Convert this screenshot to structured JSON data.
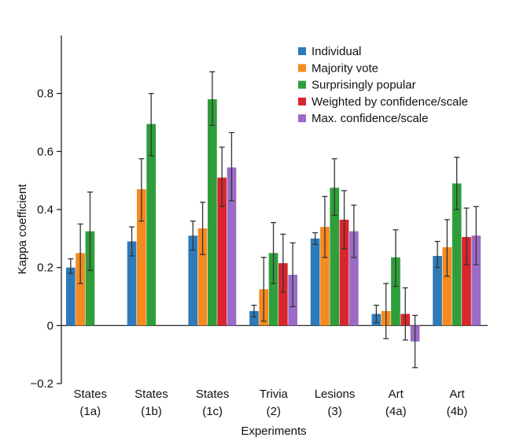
{
  "chart_data": {
    "type": "bar",
    "title": "",
    "xlabel": "Experiments",
    "ylabel": "Kappa coefficient",
    "ylim": [
      -0.2,
      1.0
    ],
    "yticks": [
      -0.2,
      0,
      0.2,
      0.4,
      0.6,
      0.8
    ],
    "ytick_labels": [
      "−0.2",
      "0",
      "0.2",
      "0.4",
      "0.6",
      "0.8"
    ],
    "grid": false,
    "legend_position": "top-right",
    "categories": [
      {
        "line1": "States",
        "line2": "(1a)"
      },
      {
        "line1": "States",
        "line2": "(1b)"
      },
      {
        "line1": "States",
        "line2": "(1c)"
      },
      {
        "line1": "Trivia",
        "line2": "(2)"
      },
      {
        "line1": "Lesions",
        "line2": "(3)"
      },
      {
        "line1": "Art",
        "line2": "(4a)"
      },
      {
        "line1": "Art",
        "line2": "(4b)"
      }
    ],
    "series": [
      {
        "name": "Individual",
        "color": "#2f7ab9",
        "values": [
          0.2,
          0.29,
          0.31,
          0.05,
          0.3,
          0.04,
          0.24
        ],
        "err_low": [
          0.18,
          0.24,
          0.26,
          0.03,
          0.28,
          0.01,
          0.2
        ],
        "err_high": [
          0.23,
          0.34,
          0.36,
          0.07,
          0.32,
          0.07,
          0.29
        ]
      },
      {
        "name": "Majority vote",
        "color": "#f58a1f",
        "values": [
          0.25,
          0.47,
          0.335,
          0.125,
          0.34,
          0.05,
          0.27
        ],
        "err_low": [
          0.145,
          0.36,
          0.245,
          0.015,
          0.235,
          -0.045,
          0.17
        ],
        "err_high": [
          0.35,
          0.575,
          0.425,
          0.235,
          0.445,
          0.145,
          0.365
        ]
      },
      {
        "name": "Surprisingly popular",
        "color": "#2f9e3a",
        "values": [
          0.325,
          0.695,
          0.78,
          0.25,
          0.475,
          0.235,
          0.49
        ],
        "err_low": [
          0.19,
          0.585,
          0.69,
          0.145,
          0.38,
          0.135,
          0.4
        ],
        "err_high": [
          0.46,
          0.8,
          0.875,
          0.355,
          0.575,
          0.33,
          0.58
        ]
      },
      {
        "name": "Weighted by confidence/scale",
        "color": "#d8262c",
        "values": [
          null,
          null,
          0.51,
          0.215,
          0.365,
          0.04,
          0.305
        ],
        "err_low": [
          null,
          null,
          0.41,
          0.115,
          0.265,
          -0.05,
          0.21
        ],
        "err_high": [
          null,
          null,
          0.615,
          0.315,
          0.465,
          0.13,
          0.405
        ]
      },
      {
        "name": "Max. confidence/scale",
        "color": "#9b6bc7",
        "values": [
          null,
          null,
          0.545,
          0.175,
          0.325,
          -0.055,
          0.31
        ],
        "err_low": [
          null,
          null,
          0.43,
          0.065,
          0.235,
          -0.145,
          0.21
        ],
        "err_high": [
          null,
          null,
          0.665,
          0.285,
          0.415,
          0.035,
          0.41
        ]
      }
    ]
  }
}
